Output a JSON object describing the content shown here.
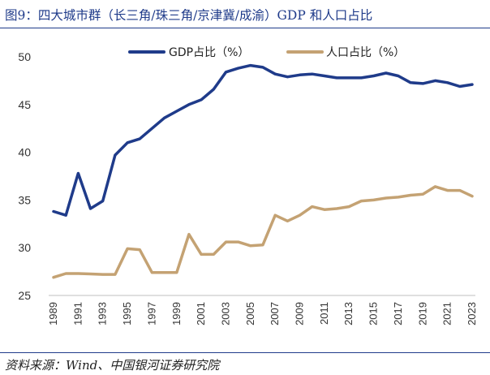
{
  "figure": {
    "title": "图9：四大城市群（长三角/珠三角/京津冀/成渝）GDP 和人口占比",
    "source": "资料来源：Wind、中国银河证券研究院"
  },
  "colors": {
    "gdp": "#1f3b8a",
    "population": "#c4a273",
    "rule": "#1f3b8a",
    "axis": "#bfbfbf"
  },
  "chart_data": {
    "type": "line",
    "title": "",
    "xlabel": "",
    "ylabel": "",
    "ylim": [
      25,
      50
    ],
    "yticks": [
      25,
      30,
      35,
      40,
      45,
      50
    ],
    "x": [
      1989,
      1990,
      1991,
      1992,
      1993,
      1994,
      1995,
      1996,
      1997,
      1998,
      1999,
      2000,
      2001,
      2002,
      2003,
      2004,
      2005,
      2006,
      2007,
      2008,
      2009,
      2010,
      2011,
      2012,
      2013,
      2014,
      2015,
      2016,
      2017,
      2018,
      2019,
      2020,
      2021,
      2022,
      2023
    ],
    "xtick_labels": [
      "1989",
      "1991",
      "1993",
      "1995",
      "1997",
      "1999",
      "2001",
      "2003",
      "2005",
      "2007",
      "2009",
      "2011",
      "2013",
      "2015",
      "2017",
      "2019",
      "2021",
      "2023"
    ],
    "legend_position": "top",
    "series": [
      {
        "name": "GDP占比（%）",
        "color": "#1f3b8a",
        "values": [
          33.8,
          33.4,
          37.8,
          34.1,
          34.9,
          39.7,
          41.0,
          41.4,
          42.5,
          43.6,
          44.3,
          45.0,
          45.5,
          46.6,
          48.4,
          48.8,
          49.1,
          48.9,
          48.2,
          47.9,
          48.1,
          48.2,
          48.0,
          47.8,
          47.8,
          47.8,
          48.0,
          48.3,
          48.0,
          47.3,
          47.2,
          47.5,
          47.3,
          46.9,
          47.1
        ]
      },
      {
        "name": "人口占比（%）",
        "color": "#c4a273",
        "values": [
          26.9,
          27.3,
          27.3,
          27.25,
          27.2,
          27.2,
          29.9,
          29.8,
          27.4,
          27.4,
          27.4,
          31.4,
          29.3,
          29.3,
          30.6,
          30.6,
          30.2,
          30.3,
          33.4,
          32.8,
          33.4,
          34.3,
          34.0,
          34.1,
          34.3,
          34.9,
          35.0,
          35.2,
          35.3,
          35.5,
          35.6,
          36.4,
          36.0,
          36.0,
          35.4
        ]
      }
    ]
  }
}
